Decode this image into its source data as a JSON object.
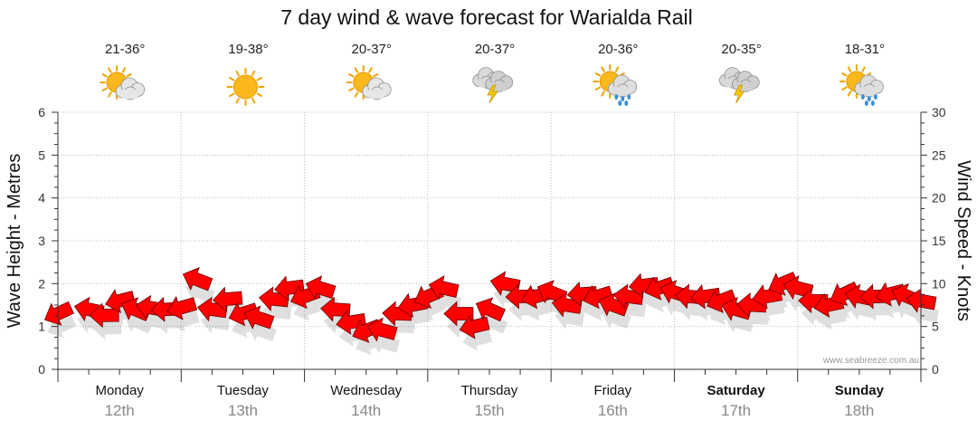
{
  "chart_data": {
    "type": "line",
    "title": "7 day wind & wave forecast for Warialda Rail",
    "ylabel_left": "Wave Height - Metres",
    "ylabel_right": "Wind Speed - Knots",
    "ylim_left": [
      0,
      6
    ],
    "ylim_right": [
      0,
      30
    ],
    "yticks_left": [
      "0",
      "1",
      "2",
      "3",
      "4",
      "5",
      "6"
    ],
    "yticks_right": [
      "0",
      "5",
      "10",
      "15",
      "20",
      "25",
      "30"
    ],
    "grid": true,
    "credit": "www.seabreeze.com.au",
    "days": [
      {
        "day": "Monday",
        "date": "12th",
        "temp": "21-36°",
        "icon": "partly-cloudy-icon",
        "bold": false
      },
      {
        "day": "Tuesday",
        "date": "13th",
        "temp": "19-38°",
        "icon": "sunny-icon",
        "bold": false
      },
      {
        "day": "Wednesday",
        "date": "14th",
        "temp": "20-37°",
        "icon": "partly-cloudy-icon",
        "bold": false
      },
      {
        "day": "Thursday",
        "date": "15th",
        "temp": "20-37°",
        "icon": "thunderstorm-icon",
        "bold": false
      },
      {
        "day": "Friday",
        "date": "16th",
        "temp": "20-36°",
        "icon": "sun-showers-icon",
        "bold": false
      },
      {
        "day": "Saturday",
        "date": "17th",
        "temp": "20-35°",
        "icon": "thunderstorm-icon",
        "bold": true
      },
      {
        "day": "Sunday",
        "date": "18th",
        "temp": "18-31°",
        "icon": "sun-showers-icon",
        "bold": true
      }
    ],
    "series": [
      {
        "name": "Wind Speed",
        "unit": "knots",
        "arrow_color": "#ff0000",
        "x_hours": [
          0,
          6,
          9,
          12,
          15,
          18,
          21,
          24,
          27,
          30,
          33,
          36,
          39,
          42,
          45,
          48,
          51,
          54,
          57,
          60,
          63,
          66,
          69,
          72,
          75,
          78,
          81,
          84,
          87,
          90,
          93,
          96,
          99,
          102,
          105,
          108,
          111,
          114,
          117,
          120,
          123,
          126,
          129,
          132,
          135,
          138,
          141,
          144,
          147,
          150,
          153,
          156,
          159,
          162,
          165,
          168
        ],
        "values": [
          6.5,
          7,
          6.3,
          8,
          7,
          7.2,
          7,
          7.2,
          10.5,
          7,
          8.2,
          6.5,
          6,
          8.2,
          9.5,
          8.5,
          9.5,
          7,
          5.5,
          4.5,
          4.6,
          6.5,
          7.5,
          8.5,
          9.5,
          6.5,
          5,
          7,
          10,
          8.5,
          8.5,
          9,
          7.5,
          8.8,
          8.5,
          7.5,
          8.5,
          9.8,
          9.5,
          9,
          8.5,
          8.5,
          8,
          7,
          7.5,
          8.5,
          10,
          9.5,
          8,
          7.5,
          8.8,
          8.5,
          8.5,
          8.8,
          8.6,
          8
        ]
      }
    ]
  }
}
